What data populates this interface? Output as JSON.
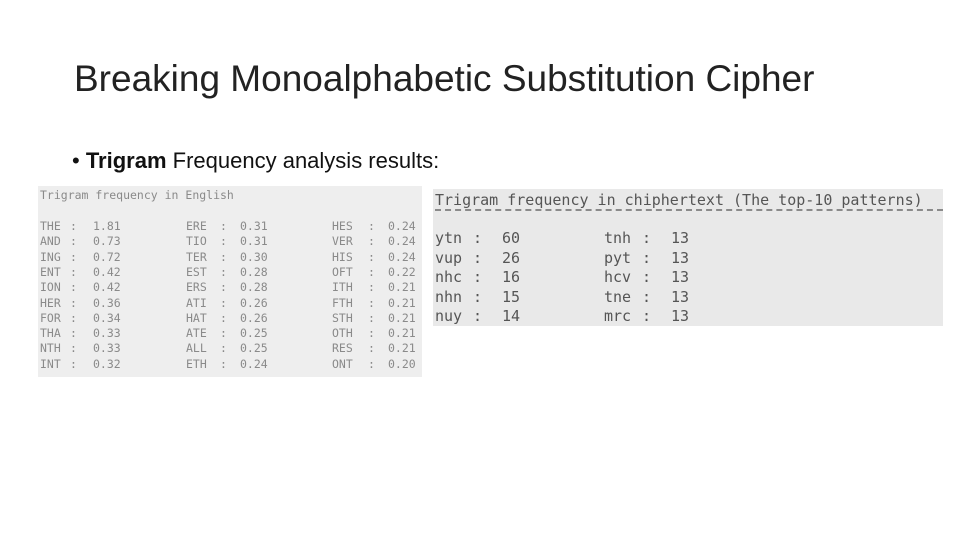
{
  "title": "Breaking Monoalphabetic Substitution Cipher",
  "bullet": {
    "bold": "Trigram",
    "text": "Frequency analysis results:"
  },
  "separator": ":",
  "english": {
    "heading": "Trigram frequency in English",
    "rows": [
      [
        [
          "THE",
          "1.81"
        ],
        [
          "ERE",
          "0.31"
        ],
        [
          "HES",
          "0.24"
        ]
      ],
      [
        [
          "AND",
          "0.73"
        ],
        [
          "TIO",
          "0.31"
        ],
        [
          "VER",
          "0.24"
        ]
      ],
      [
        [
          "ING",
          "0.72"
        ],
        [
          "TER",
          "0.30"
        ],
        [
          "HIS",
          "0.24"
        ]
      ],
      [
        [
          "ENT",
          "0.42"
        ],
        [
          "EST",
          "0.28"
        ],
        [
          "OFT",
          "0.22"
        ]
      ],
      [
        [
          "ION",
          "0.42"
        ],
        [
          "ERS",
          "0.28"
        ],
        [
          "ITH",
          "0.21"
        ]
      ],
      [
        [
          "HER",
          "0.36"
        ],
        [
          "ATI",
          "0.26"
        ],
        [
          "FTH",
          "0.21"
        ]
      ],
      [
        [
          "FOR",
          "0.34"
        ],
        [
          "HAT",
          "0.26"
        ],
        [
          "STH",
          "0.21"
        ]
      ],
      [
        [
          "THA",
          "0.33"
        ],
        [
          "ATE",
          "0.25"
        ],
        [
          "OTH",
          "0.21"
        ]
      ],
      [
        [
          "NTH",
          "0.33"
        ],
        [
          "ALL",
          "0.25"
        ],
        [
          "RES",
          "0.21"
        ]
      ],
      [
        [
          "INT",
          "0.32"
        ],
        [
          "ETH",
          "0.24"
        ],
        [
          "ONT",
          "0.20"
        ]
      ]
    ]
  },
  "cipher": {
    "heading": "Trigram frequency in chiphertext (The top-10 patterns)",
    "rows": [
      [
        [
          "ytn",
          60
        ],
        [
          "tnh",
          13
        ]
      ],
      [
        [
          "vup",
          26
        ],
        [
          "pyt",
          13
        ]
      ],
      [
        [
          "nhc",
          16
        ],
        [
          "hcv",
          13
        ]
      ],
      [
        [
          "nhn",
          15
        ],
        [
          "tne",
          13
        ]
      ],
      [
        [
          "nuy",
          14
        ],
        [
          "mrc",
          13
        ]
      ]
    ]
  }
}
